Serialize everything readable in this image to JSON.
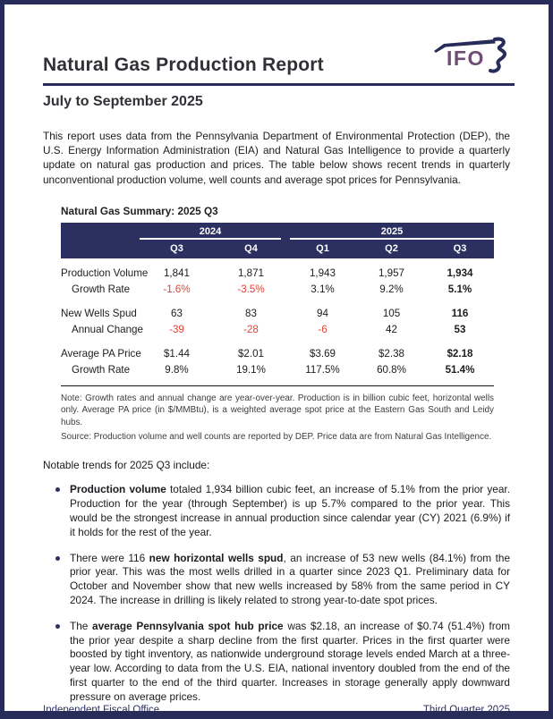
{
  "header": {
    "title": "Natural Gas Production Report",
    "subtitle": "July to September 2025",
    "logo_text": "IFO"
  },
  "intro": "This report uses data from the Pennsylvania Department of Environmental Protection (DEP), the U.S. Energy Information Administration (EIA) and Natural Gas Intelligence to provide a quarterly update on natural gas production and prices. The table below shows recent trends in quarterly unconventional production volume, well counts and average spot prices for Pennsylvania.",
  "table": {
    "title": "Natural Gas Summary: 2025 Q3",
    "year_groups": [
      "2024",
      "2025"
    ],
    "quarters": [
      "Q3",
      "Q4",
      "Q1",
      "Q2",
      "Q3"
    ],
    "rows": [
      {
        "label": "Production Volume",
        "indent": false,
        "spacer_before": false,
        "values": [
          "1,841",
          "1,871",
          "1,943",
          "1,957",
          "1,934"
        ],
        "styles": [
          "",
          "",
          "",
          "",
          "bold"
        ]
      },
      {
        "label": "Growth Rate",
        "indent": true,
        "spacer_before": false,
        "values": [
          "-1.6%",
          "-3.5%",
          "3.1%",
          "9.2%",
          "5.1%"
        ],
        "styles": [
          "red",
          "red",
          "",
          "",
          "bold"
        ]
      },
      {
        "label": "New Wells Spud",
        "indent": false,
        "spacer_before": true,
        "values": [
          "63",
          "83",
          "94",
          "105",
          "116"
        ],
        "styles": [
          "",
          "",
          "",
          "",
          "bold"
        ]
      },
      {
        "label": "Annual Change",
        "indent": true,
        "spacer_before": false,
        "values": [
          "-39",
          "-28",
          "-6",
          "42",
          "53"
        ],
        "styles": [
          "red",
          "red",
          "red",
          "",
          "bold"
        ]
      },
      {
        "label": "Average PA Price",
        "indent": false,
        "spacer_before": true,
        "values": [
          "$1.44",
          "$2.01",
          "$3.69",
          "$2.38",
          "$2.18"
        ],
        "styles": [
          "",
          "",
          "",
          "",
          "bold"
        ]
      },
      {
        "label": "Growth Rate",
        "indent": true,
        "spacer_before": false,
        "values": [
          "9.8%",
          "19.1%",
          "117.5%",
          "60.8%",
          "51.4%"
        ],
        "styles": [
          "",
          "",
          "",
          "",
          "bold"
        ]
      }
    ],
    "note": "Note: Growth rates and annual change are year-over-year. Production is in billion cubic feet, horizontal wells only. Average PA price (in $/MMBtu), is a weighted average spot price at the Eastern Gas South and Leidy hubs.",
    "source": "Source: Production volume and well counts are reported by DEP. Price data are from Natural Gas Intelligence."
  },
  "trends": {
    "heading": "Notable trends for 2025 Q3 include:",
    "bullets": [
      [
        {
          "text": "Production volume",
          "bold": true
        },
        {
          "text": " totaled 1,934 billion cubic feet, an increase of 5.1% from the prior year. Production for the year (through September) is up 5.7% compared to the prior year. This would be the strongest increase in annual production since calendar year (CY) 2021 (6.9%) if it holds for the rest of the year.",
          "bold": false
        }
      ],
      [
        {
          "text": "There were 116 ",
          "bold": false
        },
        {
          "text": "new horizontal wells spud",
          "bold": true
        },
        {
          "text": ", an increase of 53 new wells (84.1%) from the prior year. This was the most wells drilled in a quarter since 2023 Q1. Preliminary data for October and November show that new wells increased by 58% from the same period in CY 2024. The increase in drilling is likely related to strong year-to-date spot prices.",
          "bold": false
        }
      ],
      [
        {
          "text": "The ",
          "bold": false
        },
        {
          "text": "average Pennsylvania spot hub price",
          "bold": true
        },
        {
          "text": " was $2.18, an increase of $0.74 (51.4%) from the prior year despite a sharp decline from the first quarter. Prices in the first quarter were boosted by tight inventory, as nationwide underground storage levels ended March at a three-year low. According to data from the U.S. EIA, national inventory doubled from the end of the first quarter to the end of the third quarter. Increases in storage generally apply downward pressure on average prices.",
          "bold": false
        }
      ]
    ]
  },
  "footer": {
    "left": "Independent Fiscal Office",
    "right": "Third Quarter 2025"
  },
  "colors": {
    "navy": "#2b3060",
    "red": "#dc4437",
    "logo_purple": "#6e4d75"
  }
}
